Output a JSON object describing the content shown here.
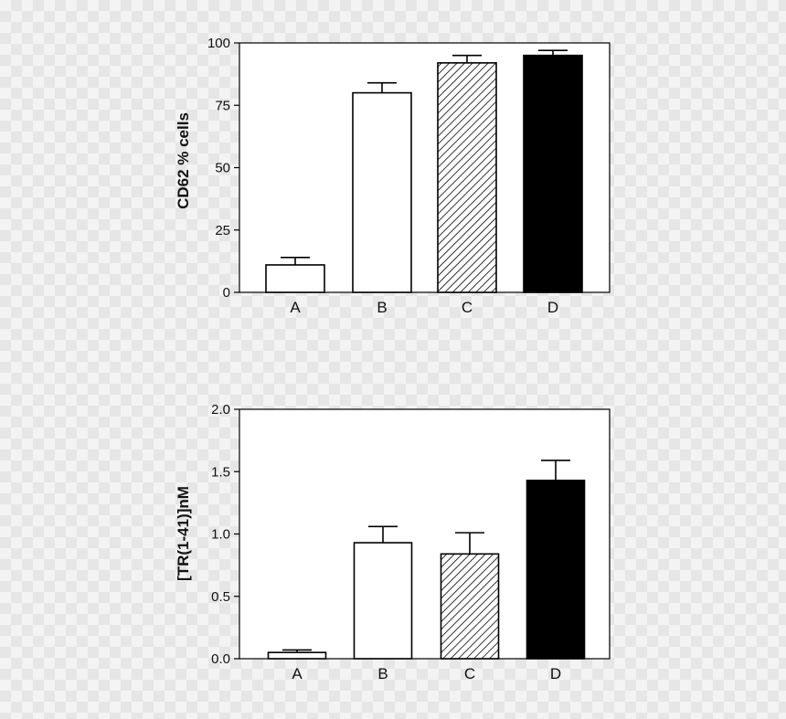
{
  "chart_data": [
    {
      "type": "bar",
      "categories": [
        "A",
        "B",
        "C",
        "D"
      ],
      "values": [
        11,
        80,
        92,
        95
      ],
      "errors": [
        3,
        4,
        3,
        2
      ],
      "fills": [
        "white",
        "white",
        "hatch",
        "black"
      ],
      "ylabel": "CD62 % cells",
      "xlabel": "",
      "ylim": [
        0,
        100
      ],
      "yticks": [
        "0",
        "25",
        "50",
        "75",
        "100"
      ],
      "grid": false
    },
    {
      "type": "bar",
      "categories": [
        "A",
        "B",
        "C",
        "D"
      ],
      "values": [
        0.05,
        0.93,
        0.84,
        1.43
      ],
      "errors": [
        0.02,
        0.13,
        0.17,
        0.16
      ],
      "fills": [
        "white",
        "white",
        "hatch",
        "black"
      ],
      "ylabel": "[TR(1-41)]nM",
      "xlabel": "",
      "ylim": [
        0,
        2
      ],
      "yticks": [
        "0.0",
        "0.5",
        "1.0",
        "1.5",
        "2.0"
      ],
      "grid": false
    }
  ],
  "colors": {
    "bar_outline": "#000000",
    "panel_bg": "#ffffff",
    "solid_fill": "#000000"
  }
}
